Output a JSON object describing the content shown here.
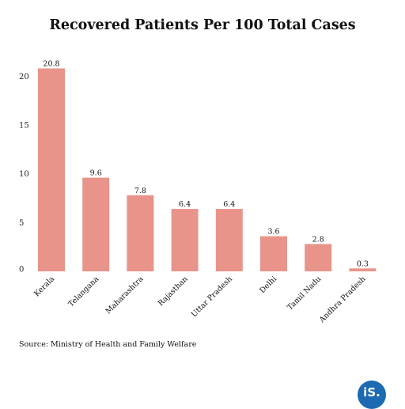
{
  "chart_data": {
    "type": "bar",
    "title": "Recovered Patients Per 100 Total Cases",
    "categories": [
      "Kerala",
      "Telangana",
      "Maharashtra",
      "Rajasthan",
      "Uttar Pradesh",
      "Delhi",
      "Tamil Nadu",
      "Andhra Pradesh"
    ],
    "values": [
      20.8,
      9.6,
      7.8,
      6.4,
      6.4,
      3.6,
      2.8,
      0.3
    ],
    "data_labels": [
      "20.8",
      "9.6",
      "7.8",
      "6.4",
      "6.4",
      "3.6",
      "2.8",
      "0.3"
    ],
    "yticks": [
      0,
      5,
      10,
      15,
      20
    ],
    "ylim": [
      0,
      21
    ],
    "xlabel": "",
    "ylabel": "",
    "grid": false,
    "bar_color": "#e8948a"
  },
  "source": "Source: Ministry of Health and Family Welfare",
  "logo": {
    "text": "iS.",
    "color": "#1c6ab2"
  }
}
